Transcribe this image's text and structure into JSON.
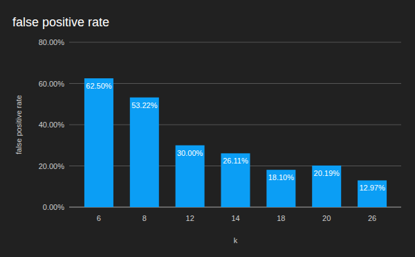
{
  "chart_data": {
    "type": "bar",
    "title": "false positive rate",
    "x_label": "k",
    "y_label": "false positive rate",
    "categories": [
      "6",
      "8",
      "12",
      "14",
      "18",
      "20",
      "26"
    ],
    "values": [
      62.5,
      53.22,
      30,
      26.11,
      18.1,
      20.19,
      12.97
    ],
    "value_labels": [
      "62.50%",
      "53.22%",
      "30.00%",
      "26.11%",
      "18.10%",
      "20.19%",
      "12.97%"
    ],
    "color": "#0b9ef5",
    "ylim": [
      0,
      80
    ],
    "yticks": [
      {
        "value": 0,
        "label": "0.00%"
      },
      {
        "value": 20,
        "label": "20.00%"
      },
      {
        "value": 40,
        "label": "40.00%"
      },
      {
        "value": 60,
        "label": "60.00%"
      },
      {
        "value": 80,
        "label": "80.00%"
      }
    ],
    "grid": true,
    "data_labels": true
  }
}
